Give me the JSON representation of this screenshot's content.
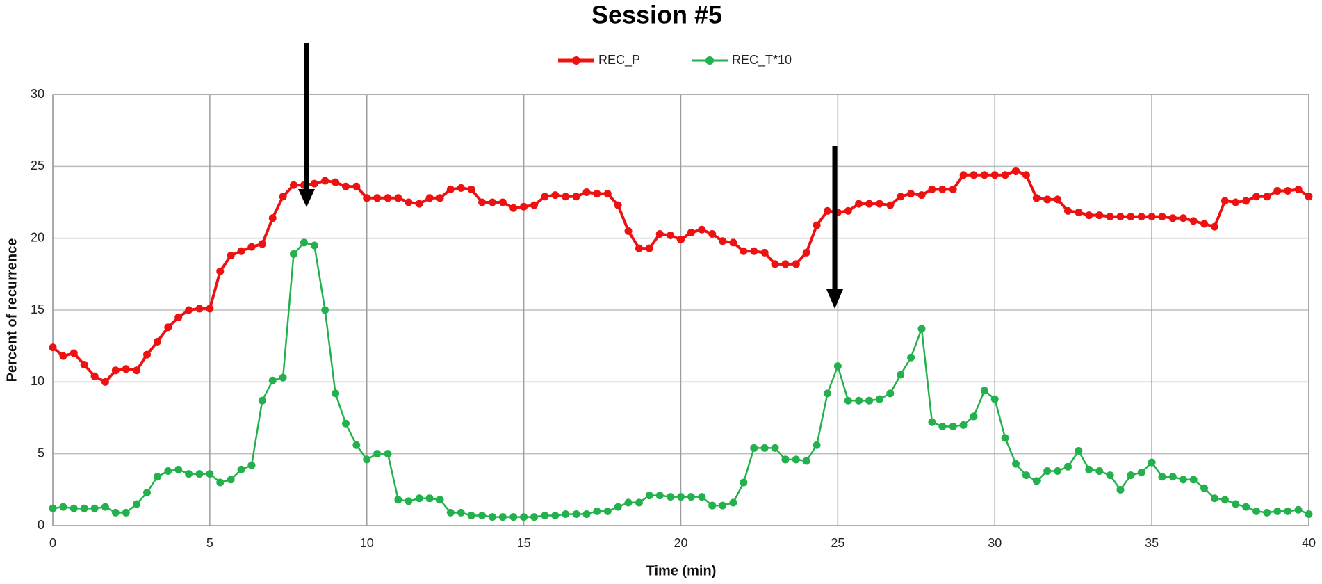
{
  "chart_data": {
    "type": "line",
    "title": "Session #5",
    "x_label": "Time (min)",
    "y_label": "Percent of recurrence",
    "xlim": [
      0,
      40
    ],
    "xticks": [
      0,
      5,
      10,
      15,
      20,
      25,
      30,
      35,
      40
    ],
    "ylim": [
      0,
      30
    ],
    "yticks": [
      0,
      5,
      10,
      15,
      20,
      25,
      30
    ],
    "grid": true,
    "legend": "top",
    "x": [
      0,
      0.33,
      0.67,
      1,
      1.33,
      1.67,
      2,
      2.33,
      2.67,
      3,
      3.33,
      3.67,
      4,
      4.33,
      4.67,
      5,
      5.33,
      5.67,
      6,
      6.33,
      6.67,
      7,
      7.33,
      7.67,
      8,
      8.33,
      8.67,
      9,
      9.33,
      9.67,
      10,
      10.33,
      10.67,
      11,
      11.33,
      11.67,
      12,
      12.33,
      12.67,
      13,
      13.33,
      13.67,
      14,
      14.33,
      14.67,
      15,
      15.33,
      15.67,
      16,
      16.33,
      16.67,
      17,
      17.33,
      17.67,
      18,
      18.33,
      18.67,
      19,
      19.33,
      19.67,
      20,
      20.33,
      20.67,
      21,
      21.33,
      21.67,
      22,
      22.33,
      22.67,
      23,
      23.33,
      23.67,
      24,
      24.33,
      24.67,
      25,
      25.33,
      25.67,
      26,
      26.33,
      26.67,
      27,
      27.33,
      27.67,
      28,
      28.33,
      28.67,
      29,
      29.33,
      29.67,
      30,
      30.33,
      30.67,
      31,
      31.33,
      31.67,
      32,
      32.33,
      32.67,
      33,
      33.33,
      33.67,
      34,
      34.33,
      34.67,
      35,
      35.33,
      35.67,
      36,
      36.33,
      36.67,
      37,
      37.33,
      37.67,
      38,
      38.33,
      38.67,
      39,
      39.33,
      39.67,
      40
    ],
    "series": [
      {
        "name": "REC_P",
        "color": "#ee1111",
        "values": [
          12.4,
          11.8,
          12.0,
          11.2,
          10.4,
          10.0,
          10.8,
          10.9,
          10.8,
          11.9,
          12.8,
          13.8,
          14.5,
          15.0,
          15.1,
          15.1,
          17.7,
          18.8,
          19.1,
          19.4,
          19.6,
          21.4,
          22.9,
          23.7,
          23.7,
          23.8,
          24.0,
          23.9,
          23.6,
          23.6,
          22.8,
          22.8,
          22.8,
          22.8,
          22.5,
          22.4,
          22.8,
          22.8,
          23.4,
          23.5,
          23.4,
          22.5,
          22.5,
          22.5,
          22.1,
          22.2,
          22.3,
          22.9,
          23.0,
          22.9,
          22.9,
          23.2,
          23.1,
          23.1,
          22.3,
          20.5,
          19.3,
          19.3,
          20.3,
          20.2,
          19.9,
          20.4,
          20.6,
          20.3,
          19.8,
          19.7,
          19.1,
          19.1,
          19.0,
          18.2,
          18.2,
          18.2,
          19.0,
          20.9,
          21.9,
          21.8,
          21.9,
          22.4,
          22.4,
          22.4,
          22.3,
          22.9,
          23.1,
          23.0,
          23.4,
          23.4,
          23.4,
          24.4,
          24.4,
          24.4,
          24.4,
          24.4,
          24.7,
          24.4,
          22.8,
          22.7,
          22.7,
          21.9,
          21.8,
          21.6,
          21.6,
          21.5,
          21.5,
          21.5,
          21.5,
          21.5,
          21.5,
          21.4,
          21.4,
          21.2,
          21.0,
          20.8,
          22.6,
          22.5,
          22.6,
          22.9,
          22.9,
          23.3,
          23.3,
          23.4,
          22.9
        ]
      },
      {
        "name": "REC_T*10",
        "color": "#22b14c",
        "values": [
          1.2,
          1.3,
          1.2,
          1.2,
          1.2,
          1.3,
          0.9,
          0.9,
          1.5,
          2.3,
          3.4,
          3.8,
          3.9,
          3.6,
          3.6,
          3.6,
          3.0,
          3.2,
          3.9,
          4.2,
          8.7,
          10.1,
          10.3,
          18.9,
          19.7,
          19.5,
          15.0,
          9.2,
          7.1,
          5.6,
          4.6,
          5.0,
          5.0,
          1.8,
          1.7,
          1.9,
          1.9,
          1.8,
          0.9,
          0.9,
          0.7,
          0.7,
          0.6,
          0.6,
          0.6,
          0.6,
          0.6,
          0.7,
          0.7,
          0.8,
          0.8,
          0.8,
          1.0,
          1.0,
          1.3,
          1.6,
          1.6,
          2.1,
          2.1,
          2.0,
          2.0,
          2.0,
          2.0,
          1.4,
          1.4,
          1.6,
          3.0,
          5.4,
          5.4,
          5.4,
          4.6,
          4.6,
          4.5,
          5.6,
          9.2,
          11.1,
          8.7,
          8.7,
          8.7,
          8.8,
          9.2,
          10.5,
          11.7,
          13.7,
          7.2,
          6.9,
          6.9,
          7.0,
          7.6,
          9.4,
          8.8,
          6.1,
          4.3,
          3.5,
          3.1,
          3.8,
          3.8,
          4.1,
          5.2,
          3.9,
          3.8,
          3.5,
          2.5,
          3.5,
          3.7,
          4.4,
          3.4,
          3.4,
          3.2,
          3.2,
          2.6,
          1.9,
          1.8,
          1.5,
          1.3,
          1.0,
          0.9,
          1.0,
          1.0,
          1.1,
          0.8
        ]
      }
    ]
  }
}
